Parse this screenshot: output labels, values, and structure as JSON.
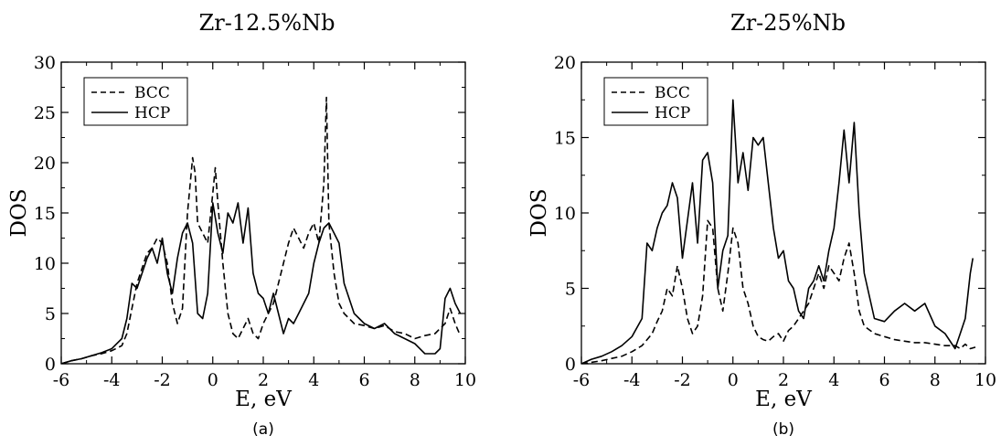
{
  "colors": {
    "line": "#000000",
    "background": "#ffffff"
  },
  "chart_data": [
    {
      "type": "line",
      "title": "Zr-12.5%Nb",
      "caption": "(a)",
      "xlabel": "E, eV",
      "ylabel": "DOS",
      "xlim": [
        -6,
        10
      ],
      "ylim": [
        0,
        30
      ],
      "xticks": [
        "-6",
        "-4",
        "-2",
        "0",
        "2",
        "4",
        "6",
        "8",
        "10"
      ],
      "yticks": [
        "0",
        "5",
        "10",
        "15",
        "20",
        "25",
        "30"
      ],
      "grid": false,
      "legend_position": "top-left",
      "series": [
        {
          "name": "BCC",
          "style": "dashed",
          "x": [
            -6.0,
            -5.6,
            -5.2,
            -4.8,
            -4.4,
            -4.0,
            -3.6,
            -3.4,
            -3.2,
            -3.0,
            -2.8,
            -2.6,
            -2.4,
            -2.2,
            -2.0,
            -1.8,
            -1.6,
            -1.4,
            -1.2,
            -1.0,
            -0.8,
            -0.7,
            -0.6,
            -0.4,
            -0.2,
            0.0,
            0.1,
            0.2,
            0.4,
            0.6,
            0.8,
            1.0,
            1.2,
            1.4,
            1.6,
            1.8,
            2.0,
            2.2,
            2.4,
            2.6,
            2.8,
            3.0,
            3.2,
            3.4,
            3.6,
            3.8,
            4.0,
            4.2,
            4.4,
            4.5,
            4.6,
            4.8,
            5.0,
            5.2,
            5.6,
            6.0,
            6.4,
            6.8,
            7.2,
            7.6,
            8.0,
            8.4,
            8.8,
            9.0,
            9.2,
            9.4,
            9.6,
            9.8
          ],
          "y": [
            0.0,
            0.3,
            0.5,
            0.8,
            1.0,
            1.3,
            1.8,
            3.0,
            5.5,
            8.0,
            9.5,
            11.0,
            11.5,
            12.5,
            12.0,
            10.0,
            6.0,
            4.0,
            5.5,
            15.0,
            20.5,
            19.0,
            14.0,
            13.0,
            12.0,
            17.0,
            19.5,
            16.0,
            10.0,
            5.0,
            3.0,
            2.5,
            3.5,
            4.5,
            3.0,
            2.5,
            4.0,
            5.0,
            6.0,
            8.0,
            10.0,
            12.0,
            13.5,
            12.5,
            11.5,
            13.0,
            14.0,
            12.0,
            18.0,
            26.5,
            14.0,
            9.0,
            6.0,
            5.0,
            4.0,
            3.8,
            3.5,
            3.8,
            3.2,
            3.0,
            2.5,
            2.8,
            3.0,
            3.5,
            4.0,
            5.5,
            4.0,
            2.8
          ]
        },
        {
          "name": "HCP",
          "style": "solid",
          "x": [
            -6.0,
            -5.6,
            -5.2,
            -4.8,
            -4.4,
            -4.0,
            -3.6,
            -3.4,
            -3.2,
            -3.0,
            -2.8,
            -2.6,
            -2.4,
            -2.2,
            -2.0,
            -1.8,
            -1.6,
            -1.4,
            -1.2,
            -1.0,
            -0.8,
            -0.6,
            -0.4,
            -0.2,
            0.0,
            0.2,
            0.4,
            0.6,
            0.8,
            1.0,
            1.2,
            1.4,
            1.6,
            1.8,
            2.0,
            2.2,
            2.4,
            2.6,
            2.8,
            3.0,
            3.2,
            3.4,
            3.6,
            3.8,
            4.0,
            4.2,
            4.4,
            4.6,
            4.8,
            5.0,
            5.2,
            5.6,
            6.0,
            6.4,
            6.8,
            7.2,
            7.6,
            8.0,
            8.4,
            8.8,
            9.0,
            9.2,
            9.4,
            9.6,
            9.8
          ],
          "y": [
            0.0,
            0.3,
            0.5,
            0.8,
            1.1,
            1.5,
            2.5,
            4.5,
            8.0,
            7.5,
            9.0,
            10.5,
            11.5,
            10.0,
            12.5,
            9.0,
            7.0,
            10.5,
            13.0,
            14.0,
            12.0,
            5.0,
            4.5,
            7.0,
            16.0,
            13.0,
            11.0,
            15.0,
            14.0,
            16.0,
            12.0,
            15.5,
            9.0,
            7.0,
            6.5,
            5.0,
            7.0,
            5.0,
            3.0,
            4.5,
            4.0,
            5.0,
            6.0,
            7.0,
            10.0,
            12.0,
            13.5,
            14.0,
            13.0,
            12.0,
            8.0,
            5.0,
            4.0,
            3.5,
            4.0,
            3.0,
            2.5,
            2.0,
            1.0,
            1.0,
            1.5,
            6.5,
            7.5,
            6.0,
            5.0
          ]
        }
      ]
    },
    {
      "type": "line",
      "title": "Zr-25%Nb",
      "caption": "(b)",
      "xlabel": "E, eV",
      "ylabel": "DOS",
      "xlim": [
        -6,
        10
      ],
      "ylim": [
        0,
        20
      ],
      "xticks": [
        "-6",
        "-4",
        "-2",
        "0",
        "2",
        "4",
        "6",
        "8",
        "10"
      ],
      "yticks": [
        "0",
        "5",
        "10",
        "15",
        "20"
      ],
      "grid": false,
      "legend_position": "top-left",
      "series": [
        {
          "name": "BCC",
          "style": "dashed",
          "x": [
            -6.0,
            -5.6,
            -5.2,
            -4.8,
            -4.4,
            -4.0,
            -3.6,
            -3.2,
            -3.0,
            -2.8,
            -2.6,
            -2.4,
            -2.2,
            -2.0,
            -1.8,
            -1.6,
            -1.4,
            -1.2,
            -1.0,
            -0.8,
            -0.6,
            -0.4,
            -0.2,
            0.0,
            0.2,
            0.4,
            0.6,
            0.8,
            1.0,
            1.2,
            1.4,
            1.6,
            1.8,
            2.0,
            2.2,
            2.4,
            2.6,
            2.8,
            3.0,
            3.2,
            3.4,
            3.6,
            3.8,
            4.0,
            4.2,
            4.4,
            4.6,
            4.8,
            5.0,
            5.2,
            5.6,
            6.0,
            6.4,
            6.8,
            7.2,
            7.6,
            8.0,
            8.4,
            8.8,
            9.0,
            9.2,
            9.4,
            9.6
          ],
          "y": [
            0.0,
            0.1,
            0.2,
            0.35,
            0.5,
            0.8,
            1.2,
            2.0,
            2.8,
            3.5,
            5.0,
            4.5,
            6.5,
            5.0,
            3.0,
            2.0,
            2.5,
            4.5,
            9.5,
            9.0,
            5.0,
            3.5,
            6.0,
            9.0,
            8.0,
            5.0,
            4.0,
            2.5,
            1.8,
            1.6,
            1.5,
            1.8,
            2.0,
            1.5,
            2.2,
            2.5,
            3.0,
            3.5,
            4.0,
            5.0,
            6.0,
            5.0,
            6.5,
            6.0,
            5.5,
            7.0,
            8.0,
            6.0,
            3.5,
            2.5,
            2.0,
            1.8,
            1.6,
            1.5,
            1.4,
            1.4,
            1.3,
            1.2,
            1.2,
            1.0,
            1.3,
            1.0,
            1.1
          ]
        },
        {
          "name": "HCP",
          "style": "solid",
          "x": [
            -6.0,
            -5.6,
            -5.2,
            -4.8,
            -4.4,
            -4.0,
            -3.6,
            -3.4,
            -3.2,
            -3.0,
            -2.8,
            -2.6,
            -2.4,
            -2.2,
            -2.0,
            -1.8,
            -1.6,
            -1.4,
            -1.2,
            -1.0,
            -0.8,
            -0.6,
            -0.4,
            -0.2,
            0.0,
            0.2,
            0.4,
            0.6,
            0.8,
            1.0,
            1.2,
            1.4,
            1.6,
            1.8,
            2.0,
            2.2,
            2.4,
            2.6,
            2.8,
            3.0,
            3.2,
            3.4,
            3.6,
            3.8,
            4.0,
            4.2,
            4.4,
            4.6,
            4.8,
            5.0,
            5.2,
            5.6,
            6.0,
            6.4,
            6.8,
            7.2,
            7.6,
            8.0,
            8.4,
            8.8,
            9.0,
            9.2,
            9.4,
            9.5
          ],
          "y": [
            0.0,
            0.3,
            0.5,
            0.8,
            1.2,
            1.8,
            3.0,
            8.0,
            7.5,
            9.0,
            10.0,
            10.5,
            12.0,
            11.0,
            7.0,
            9.5,
            12.0,
            8.0,
            13.5,
            14.0,
            12.0,
            5.0,
            7.5,
            8.5,
            17.5,
            12.0,
            14.0,
            11.5,
            15.0,
            14.5,
            15.0,
            12.0,
            9.0,
            7.0,
            7.5,
            5.5,
            5.0,
            3.5,
            3.0,
            5.0,
            5.5,
            6.5,
            5.5,
            7.5,
            9.0,
            12.0,
            15.5,
            12.0,
            16.0,
            10.0,
            6.0,
            3.0,
            2.8,
            3.5,
            4.0,
            3.5,
            4.0,
            2.5,
            2.0,
            1.0,
            2.0,
            3.0,
            6.0,
            7.0
          ]
        }
      ]
    }
  ]
}
